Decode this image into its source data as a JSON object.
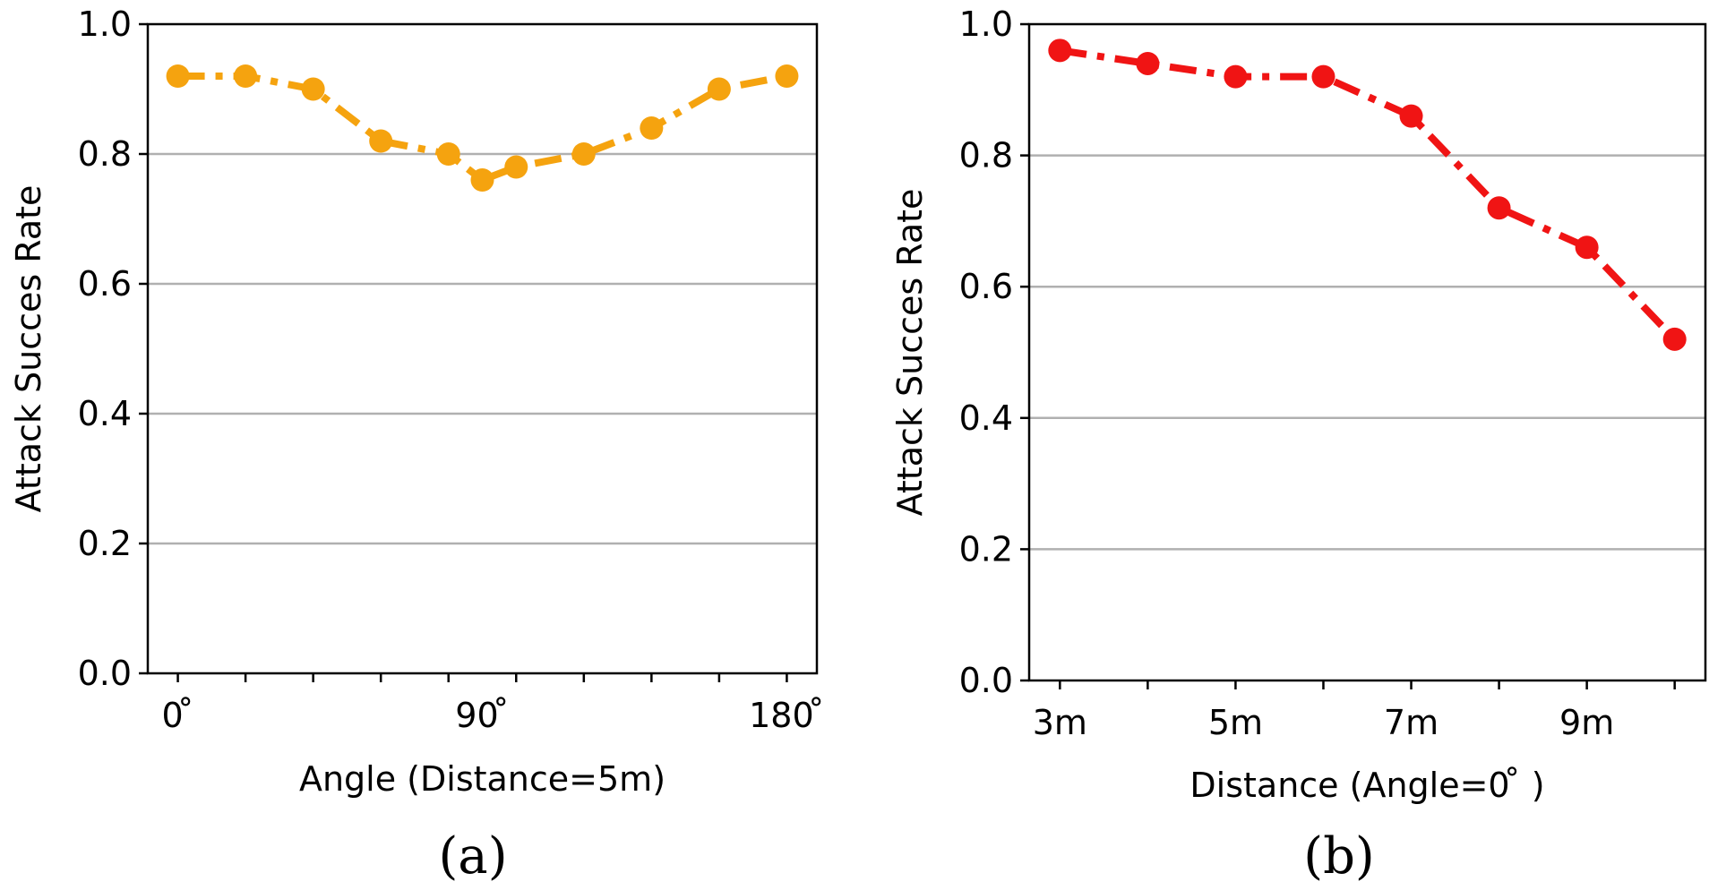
{
  "chart_data": [
    {
      "type": "line",
      "panel_label": "(a)",
      "xlabel": "Angle (Distance=5m)",
      "ylabel": "Attack Succes Rate",
      "x": [
        0,
        18,
        36,
        54,
        72,
        81,
        90,
        108,
        126,
        144,
        162
      ],
      "values": [
        0.92,
        0.92,
        0.9,
        0.82,
        0.8,
        0.76,
        0.78,
        0.8,
        0.84,
        0.9,
        0.92
      ],
      "xlim": [
        -8,
        170
      ],
      "ylim": [
        0.0,
        1.0
      ],
      "x_tick_positions": [
        0,
        18,
        36,
        54,
        72,
        90,
        108,
        126,
        144,
        162
      ],
      "x_tick_labels": [
        {
          "x": 0,
          "label": "0 ̊"
        },
        {
          "x": 81,
          "label": "90 ̊"
        },
        {
          "x": 162,
          "label": "180 ̊"
        }
      ],
      "y_ticks": [
        0.0,
        0.2,
        0.4,
        0.6,
        0.8,
        1.0
      ],
      "y_tick_labels": [
        "0.0",
        "0.2",
        "0.4",
        "0.6",
        "0.8",
        "1.0"
      ],
      "grid": "horizontal",
      "line_style": "dashdot",
      "color": "#f5a30f"
    },
    {
      "type": "line",
      "panel_label": "(b)",
      "xlabel": "Distance (Angle=0 ̊ )",
      "ylabel": "Attack Succes Rate",
      "x": [
        3,
        4,
        5,
        6,
        7,
        8,
        9,
        10
      ],
      "values": [
        0.96,
        0.94,
        0.92,
        0.92,
        0.86,
        0.72,
        0.66,
        0.52
      ],
      "xlim": [
        2.65,
        10.35
      ],
      "ylim": [
        0.0,
        1.0
      ],
      "x_tick_positions": [
        3,
        4,
        5,
        6,
        7,
        8,
        9,
        10
      ],
      "x_tick_labels": [
        {
          "x": 3,
          "label": "3m"
        },
        {
          "x": 5,
          "label": "5m"
        },
        {
          "x": 7,
          "label": "7m"
        },
        {
          "x": 9,
          "label": "9m"
        }
      ],
      "y_ticks": [
        0.0,
        0.2,
        0.4,
        0.6,
        0.8,
        1.0
      ],
      "y_tick_labels": [
        "0.0",
        "0.2",
        "0.4",
        "0.6",
        "0.8",
        "1.0"
      ],
      "grid": "horizontal",
      "line_style": "dashdot",
      "color": "#f01414"
    }
  ]
}
